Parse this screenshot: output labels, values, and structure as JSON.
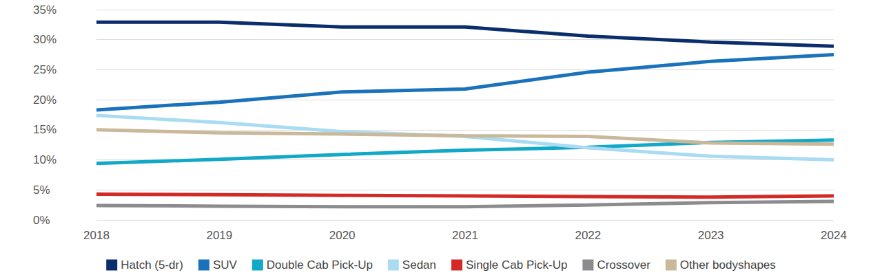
{
  "chart_data": {
    "type": "line",
    "categories": [
      "2018",
      "2019",
      "2020",
      "2021",
      "2022",
      "2023",
      "2024"
    ],
    "series": [
      {
        "name": "Hatch (5-dr)",
        "color": "#0b2d6b",
        "values": [
          32.9,
          32.9,
          32.1,
          32.1,
          30.6,
          29.6,
          28.9
        ]
      },
      {
        "name": "SUV",
        "color": "#1a72bb",
        "values": [
          18.3,
          19.6,
          21.3,
          21.8,
          24.6,
          26.4,
          27.5
        ]
      },
      {
        "name": "Double Cab Pick-Up",
        "color": "#12a8c8",
        "values": [
          9.4,
          10.1,
          10.9,
          11.6,
          12.1,
          12.9,
          13.3
        ]
      },
      {
        "name": "Sedan",
        "color": "#a9dcf2",
        "values": [
          17.4,
          16.2,
          14.7,
          13.9,
          12.0,
          10.6,
          10.0
        ]
      },
      {
        "name": "Single Cab Pick-Up",
        "color": "#d42a27",
        "values": [
          4.3,
          4.2,
          4.1,
          4.0,
          3.9,
          3.8,
          4.0
        ]
      },
      {
        "name": "Crossover",
        "color": "#8c8c8e",
        "values": [
          2.4,
          2.3,
          2.2,
          2.2,
          2.5,
          2.9,
          3.1
        ]
      },
      {
        "name": "Other bodyshapes",
        "color": "#c9b99a",
        "values": [
          15.0,
          14.5,
          14.3,
          14.0,
          13.9,
          12.8,
          12.6
        ]
      }
    ],
    "ylim": [
      0,
      35
    ],
    "yticks": [
      {
        "value": 0,
        "label": "0%"
      },
      {
        "value": 5,
        "label": "5%"
      },
      {
        "value": 10,
        "label": "10%"
      },
      {
        "value": 15,
        "label": "15%"
      },
      {
        "value": 20,
        "label": "20%"
      },
      {
        "value": 25,
        "label": "25%"
      },
      {
        "value": 30,
        "label": "30%"
      },
      {
        "value": 35,
        "label": "35%"
      }
    ],
    "grid": true,
    "legend": "bottom"
  }
}
